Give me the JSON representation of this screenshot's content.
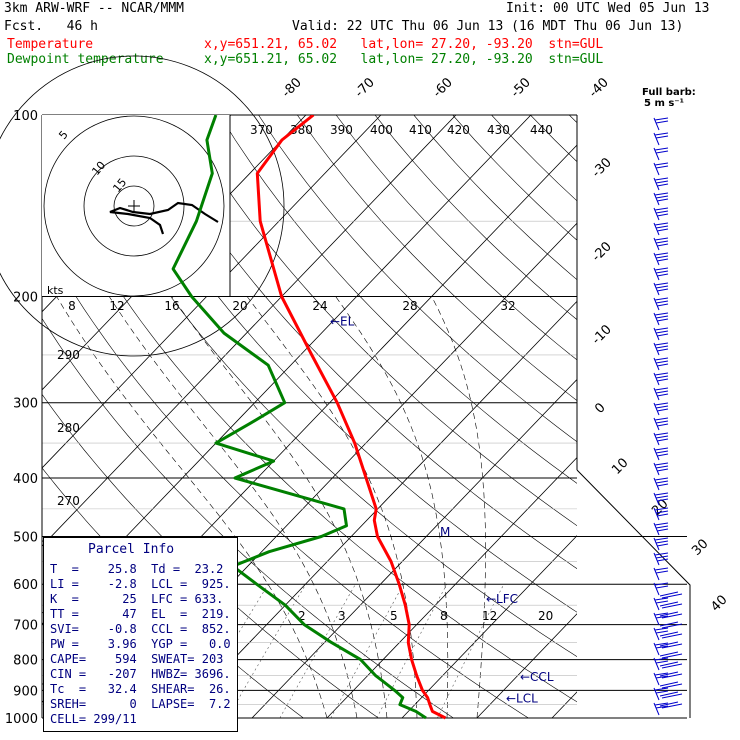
{
  "header": {
    "model": "3km ARW-WRF -- NCAR/MMM",
    "init": "Init: 00 UTC Wed 05 Jun 13",
    "fcst": "Fcst.   46 h",
    "valid": "Valid: 22 UTC Thu 06 Jun 13 (16 MDT Thu 06 Jun 13)",
    "temp_label": "Temperature",
    "temp_loc": "x,y=651.21, 65.02   lat,lon= 27.20, -93.20  stn=GUL",
    "dew_label": "Dewpoint temperature",
    "dew_loc": "x,y=651.21, 65.02   lat,lon= 27.20, -93.20  stn=GUL"
  },
  "barb_legend": {
    "title": "Full barb:",
    "value": "5 m s⁻¹"
  },
  "chart_data": {
    "type": "line",
    "subtype": "skew-T log-p diagram",
    "pressure_levels_hPa": [
      100,
      200,
      300,
      400,
      500,
      600,
      700,
      800,
      900,
      1000
    ],
    "isotherm_labels_C": [
      "-80",
      "-70",
      "-60",
      "-50",
      "-40",
      "-30",
      "-20",
      "-10",
      "0",
      "10",
      "20",
      "30",
      "40"
    ],
    "theta_labels_K": [
      "370",
      "380",
      "390",
      "400",
      "410",
      "420",
      "430",
      "440",
      "290",
      "280",
      "270"
    ],
    "mixing_ratio_labels": [
      "2",
      "3",
      "5",
      "8",
      "12",
      "20"
    ],
    "hodograph": {
      "speed_axis_label": "kts",
      "speed_ticks": [
        "8",
        "12",
        "16",
        "20",
        "24",
        "28",
        "32"
      ],
      "ring_labels": [
        "5",
        "10",
        "15"
      ]
    },
    "series": [
      {
        "name": "Temperature",
        "color": "#ff0000",
        "points": [
          [
            1000,
            25.8
          ],
          [
            975,
            23.2
          ],
          [
            950,
            22.0
          ],
          [
            925,
            20.8
          ],
          [
            900,
            19.2
          ],
          [
            850,
            16.5
          ],
          [
            800,
            13.8
          ],
          [
            750,
            11.2
          ],
          [
            700,
            9.0
          ],
          [
            650,
            6.0
          ],
          [
            600,
            2.5
          ],
          [
            550,
            -1.5
          ],
          [
            500,
            -6.5
          ],
          [
            470,
            -9.0
          ],
          [
            450,
            -10.2
          ],
          [
            400,
            -15.5
          ],
          [
            350,
            -21.5
          ],
          [
            300,
            -29.0
          ],
          [
            250,
            -38.5
          ],
          [
            200,
            -50.0
          ],
          [
            150,
            -62.5
          ],
          [
            125,
            -69.0
          ],
          [
            110,
            -70.0
          ],
          [
            100,
            -69.0
          ]
        ]
      },
      {
        "name": "Dewpoint temperature",
        "color": "#008000",
        "points": [
          [
            1000,
            23.2
          ],
          [
            975,
            21.0
          ],
          [
            950,
            18.0
          ],
          [
            925,
            17.5
          ],
          [
            900,
            15.5
          ],
          [
            850,
            11.0
          ],
          [
            800,
            7.0
          ],
          [
            750,
            1.0
          ],
          [
            700,
            -5.0
          ],
          [
            650,
            -10.0
          ],
          [
            600,
            -16.5
          ],
          [
            560,
            -22.0
          ],
          [
            530,
            -19.0
          ],
          [
            500,
            -14.0
          ],
          [
            480,
            -12.0
          ],
          [
            450,
            -14.5
          ],
          [
            400,
            -33.0
          ],
          [
            375,
            -30.0
          ],
          [
            350,
            -40.0
          ],
          [
            325,
            -38.0
          ],
          [
            300,
            -36.0
          ],
          [
            260,
            -43.0
          ],
          [
            230,
            -53.0
          ],
          [
            200,
            -62.0
          ],
          [
            180,
            -68.0
          ],
          [
            150,
            -71.0
          ],
          [
            125,
            -75.0
          ],
          [
            110,
            -80.0
          ],
          [
            100,
            -82.0
          ]
        ]
      }
    ],
    "annotations": [
      {
        "text": "←EL",
        "pressure": 219
      },
      {
        "text": "M",
        "pressure": 490
      },
      {
        "text": "←LFC",
        "pressure": 633
      },
      {
        "text": "←CCL",
        "pressure": 852
      },
      {
        "text": "←LCL",
        "pressure": 925
      }
    ]
  },
  "parcel_info": {
    "title": "Parcel Info",
    "rows": [
      "T  =    25.8  Td =  23.2",
      "LI =    -2.8  LCL =  925.",
      "K  =      25  LFC = 633.",
      "TT =      47  EL  =  219.",
      "SVI=    -0.8  CCL =  852.",
      "PW =    3.96  YGP =   0.0",
      "CAPE=    594  SWEAT= 203",
      "CIN =   -207  HWBZ= 3696.",
      "Tc  =   32.4  SHEAR=  26.",
      "SREH=      0  LAPSE=  7.2",
      "CELL= 299/11"
    ]
  }
}
